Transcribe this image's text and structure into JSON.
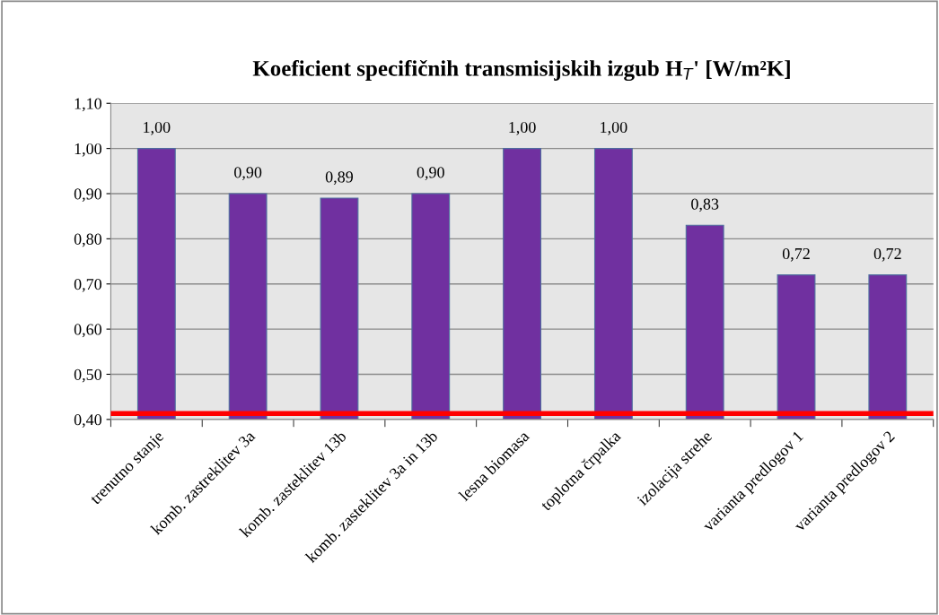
{
  "chart_data": {
    "type": "bar",
    "title": "Koeficient specifičnih transmisijskih izgub H$_{T}$' [W/m²K]",
    "categories": [
      "trenutno stanje",
      "komb. zastreklitev 3a",
      "komb. zasteklitev 13b",
      "komb. zasteklitev 3a in 13b",
      "lesna biomasa",
      "toplotna črpalka",
      "izolacija strehe",
      "varianta predlogov 1",
      "varianta predlogov 2"
    ],
    "values": [
      1.0,
      0.9,
      0.89,
      0.9,
      1.0,
      1.0,
      0.83,
      0.72,
      0.72
    ],
    "value_labels": [
      "1,00",
      "0,90",
      "0,89",
      "0,90",
      "1,00",
      "1,00",
      "0,83",
      "0,72",
      "0,72"
    ],
    "color": "#7030a0",
    "ylim": [
      0.4,
      1.1
    ],
    "yticks": [
      {
        "value": 0.4,
        "label": "0,40"
      },
      {
        "value": 0.5,
        "label": "0,50"
      },
      {
        "value": 0.6,
        "label": "0,60"
      },
      {
        "value": 0.7,
        "label": "0,70"
      },
      {
        "value": 0.8,
        "label": "0,80"
      },
      {
        "value": 0.9,
        "label": "0,90"
      },
      {
        "value": 1.0,
        "label": "1,00"
      },
      {
        "value": 1.1,
        "label": "1,10"
      }
    ],
    "ref_lines": [
      {
        "axis": "y",
        "value": 0.413,
        "color": "#ff0000"
      }
    ],
    "grid": "y",
    "legend": false
  }
}
